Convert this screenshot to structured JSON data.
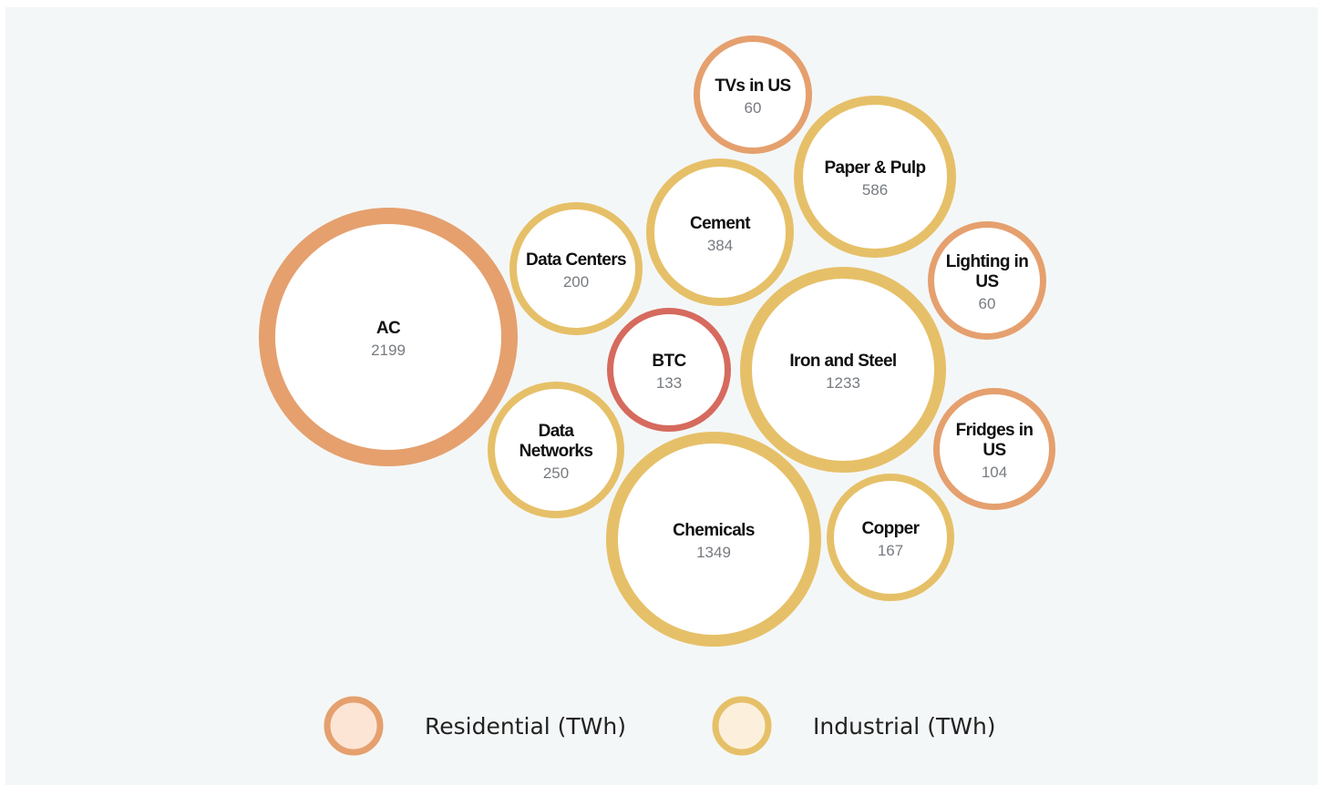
{
  "chart_data": {
    "type": "bubble",
    "title": "",
    "unit": "TWh",
    "colors": {
      "Residential": "#e5a06e",
      "Industrial": "#e6c068",
      "BTC": "#d66a5e"
    },
    "legend": {
      "placement": "bottom",
      "entries": [
        {
          "label": "Residential (TWh)",
          "category": "Residential",
          "fill": "#fce5d5"
        },
        {
          "label": "Industrial (TWh)",
          "category": "Industrial",
          "fill": "#fcf0dc"
        }
      ]
    },
    "bubbles": [
      {
        "label": [
          "AC"
        ],
        "value": 2199,
        "category": "Residential"
      },
      {
        "label": [
          "Data Centers"
        ],
        "value": 200,
        "category": "Industrial"
      },
      {
        "label": [
          "Cement"
        ],
        "value": 384,
        "category": "Industrial"
      },
      {
        "label": [
          "TVs in US"
        ],
        "value": 60,
        "category": "Residential"
      },
      {
        "label": [
          "Paper & Pulp"
        ],
        "value": 586,
        "category": "Industrial"
      },
      {
        "label": [
          "Lighting in",
          "US"
        ],
        "value": 60,
        "category": "Residential"
      },
      {
        "label": [
          "BTC"
        ],
        "value": 133,
        "category": "BTC"
      },
      {
        "label": [
          "Iron and Steel"
        ],
        "value": 1233,
        "category": "Industrial"
      },
      {
        "label": [
          "Data",
          "Networks"
        ],
        "value": 250,
        "category": "Industrial"
      },
      {
        "label": [
          "Fridges in",
          "US"
        ],
        "value": 104,
        "category": "Residential"
      },
      {
        "label": [
          "Chemicals"
        ],
        "value": 1349,
        "category": "Industrial"
      },
      {
        "label": [
          "Copper"
        ],
        "value": 167,
        "category": "Industrial"
      }
    ]
  }
}
